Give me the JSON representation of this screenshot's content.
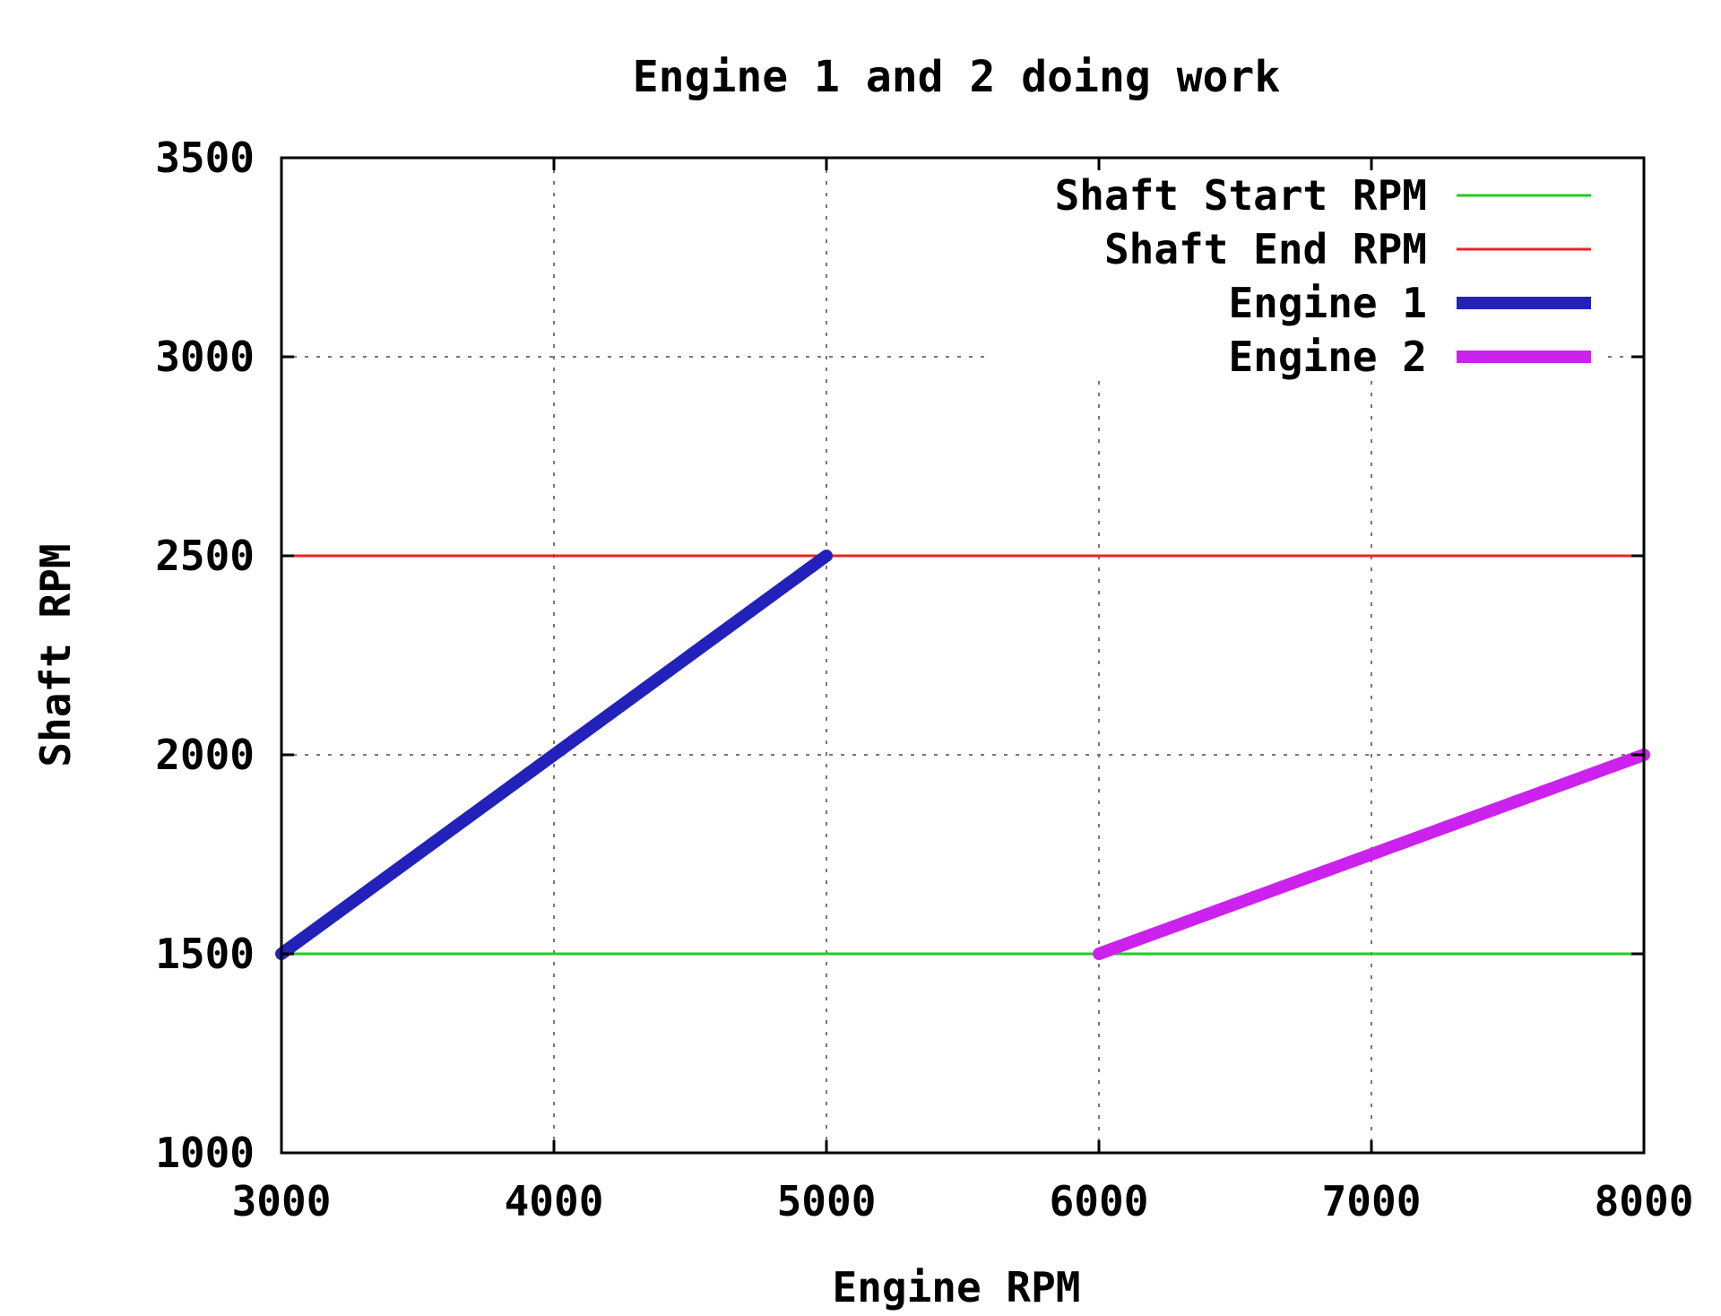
{
  "chart_data": {
    "type": "line",
    "title": "Engine 1 and 2 doing work",
    "xlabel": "Engine RPM",
    "ylabel": "Shaft RPM",
    "xlim": [
      3000,
      8000
    ],
    "ylim": [
      1000,
      3500
    ],
    "x_ticks": [
      3000,
      4000,
      5000,
      6000,
      7000,
      8000
    ],
    "y_ticks": [
      1000,
      1500,
      2000,
      2500,
      3000,
      3500
    ],
    "grid": true,
    "legend_position": "top-right",
    "series": [
      {
        "name": "Shaft Start RPM",
        "color": "#22cc22",
        "style": "thin",
        "points": [
          [
            3000,
            1500
          ],
          [
            8000,
            1500
          ]
        ]
      },
      {
        "name": "Shaft End RPM",
        "color": "#ee2222",
        "style": "thin",
        "points": [
          [
            3000,
            2500
          ],
          [
            8000,
            2500
          ]
        ]
      },
      {
        "name": "Engine 1",
        "color": "#2222bb",
        "style": "thick",
        "points": [
          [
            3000,
            1500
          ],
          [
            5000,
            2500
          ]
        ]
      },
      {
        "name": "Engine 2",
        "color": "#cc22ee",
        "style": "thick",
        "points": [
          [
            6000,
            1500
          ],
          [
            8000,
            2000
          ]
        ]
      }
    ]
  }
}
